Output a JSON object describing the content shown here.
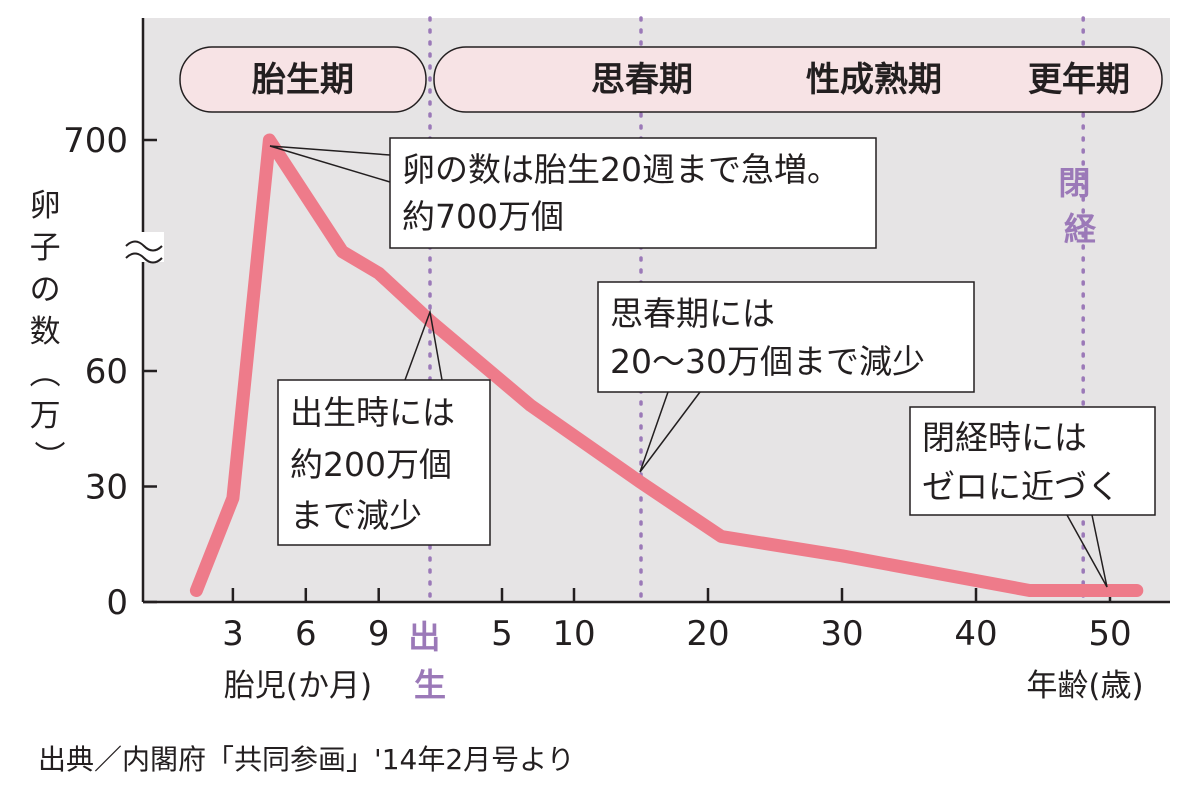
{
  "chart_data": {
    "type": "line",
    "ylabel": "卵子の数(万)",
    "xlabel_fetal": "胎児(か月)",
    "xlabel_age": "年齢(歳)",
    "y_ticks": [
      "0",
      "30",
      "60",
      "700"
    ],
    "y_break": true,
    "fetal_ticks": [
      {
        "value": 3,
        "label": "3"
      },
      {
        "value": 6,
        "label": "6"
      },
      {
        "value": 9,
        "label": "9"
      }
    ],
    "age_ticks": [
      {
        "value": 5,
        "label": "5"
      },
      {
        "value": 10,
        "label": "10"
      },
      {
        "value": 20,
        "label": "20"
      },
      {
        "value": 30,
        "label": "30"
      },
      {
        "value": 40,
        "label": "40"
      },
      {
        "value": 50,
        "label": "50"
      }
    ],
    "series": [
      {
        "color": "#ee7b8a",
        "points": [
          {
            "period": "fetal",
            "x": 1.5,
            "y": 3
          },
          {
            "period": "fetal",
            "x": 3,
            "y": 27
          },
          {
            "period": "fetal",
            "x": 4.5,
            "y": 700
          },
          {
            "period": "fetal",
            "x": 7.5,
            "y": 390
          },
          {
            "period": "fetal",
            "x": 9,
            "y": 330
          },
          {
            "period": "age",
            "x": 0,
            "y": 200
          },
          {
            "period": "age",
            "x": 7,
            "y": 51
          },
          {
            "period": "age",
            "x": 15,
            "y": 31
          },
          {
            "period": "age",
            "x": 21,
            "y": 17
          },
          {
            "period": "age",
            "x": 30,
            "y": 12
          },
          {
            "period": "age",
            "x": 44,
            "y": 3
          },
          {
            "period": "age",
            "x": 52,
            "y": 3
          }
        ]
      }
    ],
    "phases": [
      {
        "label": "胎生期"
      },
      {
        "labels": [
          "思春期",
          "性成熟期",
          "更年期"
        ]
      }
    ],
    "events": [
      {
        "label": "出生",
        "period": "age",
        "x": 0
      },
      {
        "label": "",
        "period": "age",
        "x": 15
      },
      {
        "label": "閉経",
        "period": "age",
        "x": 48
      }
    ],
    "annotations": [
      {
        "lines": [
          "卵の数は胎生20週まで急増。",
          "約700万個"
        ]
      },
      {
        "lines": [
          "出生時には",
          "約200万個",
          "まで減少"
        ]
      },
      {
        "lines": [
          "思春期には",
          "20〜30万個まで減少"
        ]
      },
      {
        "lines": [
          "閉経時には",
          "ゼロに近づく"
        ]
      }
    ],
    "colors": {
      "plot_bg": "#e6e4e5",
      "phase_fill": "#f7e3e5",
      "line": "#ee7b8a",
      "event": "#9b79b8"
    }
  },
  "source": "出典／内閣府「共同参画」'14年2月号より"
}
